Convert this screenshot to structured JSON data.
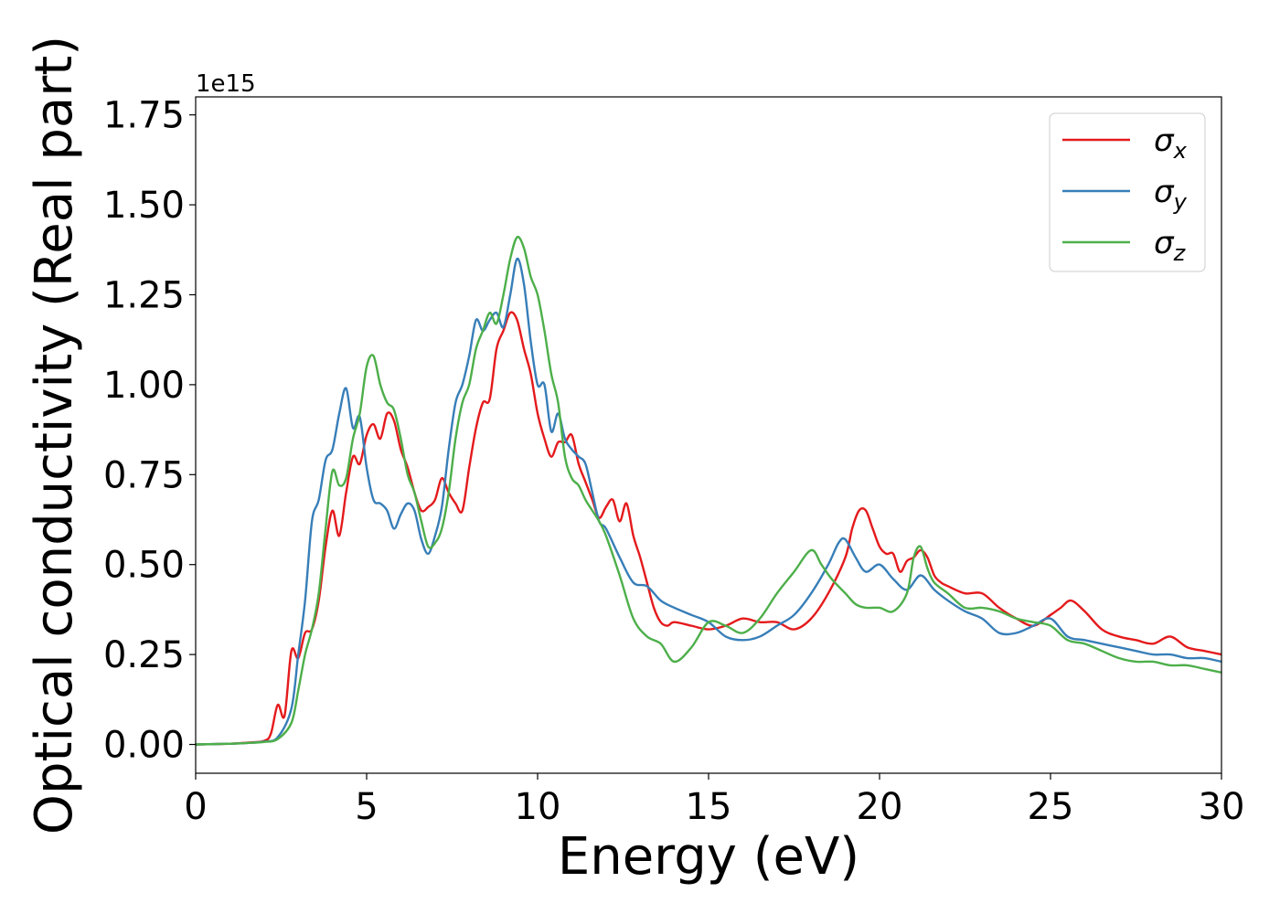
{
  "chart_data": {
    "type": "line",
    "xlabel": "Energy (eV)",
    "ylabel": "Optical conductivity (Real part)",
    "y_offset_label": "1e15",
    "xlim": [
      0,
      30
    ],
    "ylim": [
      -0.08,
      1.8
    ],
    "x_ticks": [
      0,
      5,
      10,
      15,
      20,
      25,
      30
    ],
    "x_tick_labels": [
      "0",
      "5",
      "10",
      "15",
      "20",
      "25",
      "30"
    ],
    "y_ticks": [
      0,
      0.25,
      0.5,
      0.75,
      1.0,
      1.25,
      1.5,
      1.75
    ],
    "y_tick_labels": [
      "0.00",
      "0.25",
      "0.50",
      "0.75",
      "1.00",
      "1.25",
      "1.50",
      "1.75"
    ],
    "grid": false,
    "legend_position": "top-right",
    "series": [
      {
        "name": "σx",
        "base": "σ",
        "sub": "x",
        "color": "#e41a1c",
        "x": [
          0,
          1,
          1.5,
          2,
          2.2,
          2.4,
          2.6,
          2.8,
          3.0,
          3.2,
          3.4,
          3.6,
          3.8,
          4.0,
          4.2,
          4.4,
          4.6,
          4.8,
          5.0,
          5.2,
          5.4,
          5.6,
          5.8,
          6.0,
          6.2,
          6.4,
          6.6,
          6.8,
          7.0,
          7.2,
          7.4,
          7.6,
          7.8,
          8.0,
          8.2,
          8.4,
          8.6,
          8.8,
          9.0,
          9.2,
          9.4,
          9.6,
          9.8,
          10.0,
          10.2,
          10.4,
          10.6,
          10.8,
          11.0,
          11.2,
          11.4,
          11.6,
          11.8,
          12.0,
          12.2,
          12.4,
          12.6,
          12.8,
          13.0,
          13.2,
          13.4,
          13.6,
          13.8,
          14.0,
          14.5,
          15.0,
          15.5,
          16.0,
          16.5,
          17.0,
          17.5,
          18.0,
          18.5,
          19.0,
          19.2,
          19.4,
          19.6,
          19.8,
          20.0,
          20.2,
          20.4,
          20.6,
          20.8,
          21.0,
          21.2,
          21.4,
          21.6,
          21.8,
          22.0,
          22.5,
          23.0,
          23.5,
          24.0,
          24.5,
          25.0,
          25.3,
          25.6,
          26.0,
          26.5,
          27.0,
          27.5,
          28.0,
          28.5,
          29.0,
          29.5,
          30.0
        ],
        "values": [
          0,
          0.002,
          0.005,
          0.01,
          0.03,
          0.11,
          0.08,
          0.26,
          0.24,
          0.31,
          0.32,
          0.4,
          0.55,
          0.65,
          0.58,
          0.7,
          0.8,
          0.78,
          0.86,
          0.89,
          0.85,
          0.92,
          0.9,
          0.82,
          0.77,
          0.7,
          0.65,
          0.66,
          0.68,
          0.74,
          0.7,
          0.67,
          0.65,
          0.77,
          0.88,
          0.95,
          0.96,
          1.1,
          1.15,
          1.2,
          1.18,
          1.1,
          1.03,
          0.92,
          0.85,
          0.8,
          0.84,
          0.84,
          0.86,
          0.78,
          0.73,
          0.68,
          0.63,
          0.66,
          0.68,
          0.62,
          0.67,
          0.58,
          0.52,
          0.45,
          0.38,
          0.34,
          0.33,
          0.34,
          0.33,
          0.32,
          0.33,
          0.35,
          0.34,
          0.34,
          0.32,
          0.35,
          0.42,
          0.52,
          0.6,
          0.65,
          0.65,
          0.6,
          0.55,
          0.53,
          0.53,
          0.48,
          0.51,
          0.52,
          0.54,
          0.52,
          0.47,
          0.45,
          0.44,
          0.42,
          0.42,
          0.38,
          0.35,
          0.33,
          0.36,
          0.38,
          0.4,
          0.37,
          0.32,
          0.3,
          0.29,
          0.28,
          0.3,
          0.27,
          0.26,
          0.25
        ]
      },
      {
        "name": "σy",
        "base": "σ",
        "sub": "y",
        "color": "#377eb8",
        "x": [
          0,
          1,
          1.5,
          2,
          2.4,
          2.8,
          3.0,
          3.2,
          3.4,
          3.6,
          3.8,
          4.0,
          4.2,
          4.4,
          4.6,
          4.8,
          5.0,
          5.2,
          5.4,
          5.6,
          5.8,
          6.0,
          6.2,
          6.4,
          6.6,
          6.8,
          7.0,
          7.2,
          7.4,
          7.6,
          7.8,
          8.0,
          8.2,
          8.4,
          8.6,
          8.8,
          9.0,
          9.2,
          9.4,
          9.6,
          9.8,
          10.0,
          10.2,
          10.4,
          10.6,
          10.8,
          11.0,
          11.2,
          11.4,
          11.6,
          11.8,
          12.0,
          12.4,
          12.8,
          13.2,
          13.6,
          14.0,
          14.5,
          15.0,
          15.5,
          16.0,
          16.5,
          17.0,
          17.5,
          18.0,
          18.5,
          18.8,
          19.0,
          19.3,
          19.6,
          20.0,
          20.4,
          20.8,
          21.2,
          21.6,
          22.0,
          22.5,
          23.0,
          23.5,
          24.0,
          24.5,
          25.0,
          25.5,
          26.0,
          26.5,
          27.0,
          27.5,
          28.0,
          28.5,
          29.0,
          29.5,
          30.0
        ],
        "values": [
          0,
          0.002,
          0.004,
          0.008,
          0.02,
          0.1,
          0.25,
          0.4,
          0.62,
          0.68,
          0.79,
          0.82,
          0.92,
          0.99,
          0.88,
          0.91,
          0.77,
          0.68,
          0.67,
          0.65,
          0.6,
          0.64,
          0.67,
          0.65,
          0.57,
          0.53,
          0.58,
          0.66,
          0.82,
          0.95,
          1.0,
          1.08,
          1.18,
          1.15,
          1.18,
          1.2,
          1.16,
          1.25,
          1.35,
          1.28,
          1.12,
          1.0,
          1.0,
          0.87,
          0.92,
          0.85,
          0.82,
          0.8,
          0.78,
          0.7,
          0.62,
          0.6,
          0.52,
          0.45,
          0.44,
          0.4,
          0.38,
          0.36,
          0.34,
          0.3,
          0.29,
          0.3,
          0.33,
          0.36,
          0.42,
          0.5,
          0.56,
          0.57,
          0.52,
          0.48,
          0.5,
          0.46,
          0.43,
          0.47,
          0.43,
          0.4,
          0.37,
          0.35,
          0.31,
          0.31,
          0.33,
          0.35,
          0.3,
          0.29,
          0.28,
          0.27,
          0.26,
          0.25,
          0.25,
          0.24,
          0.24,
          0.23
        ]
      },
      {
        "name": "σz",
        "base": "σ",
        "sub": "z",
        "color": "#4daf4a",
        "x": [
          0,
          1,
          1.5,
          2,
          2.4,
          2.8,
          3.0,
          3.2,
          3.4,
          3.6,
          3.8,
          4.0,
          4.2,
          4.4,
          4.6,
          4.8,
          5.0,
          5.2,
          5.4,
          5.6,
          5.8,
          6.0,
          6.2,
          6.4,
          6.6,
          6.8,
          7.0,
          7.2,
          7.4,
          7.6,
          7.8,
          8.0,
          8.2,
          8.4,
          8.6,
          8.8,
          9.0,
          9.2,
          9.4,
          9.6,
          9.8,
          10.0,
          10.2,
          10.4,
          10.6,
          10.8,
          11.0,
          11.2,
          11.4,
          11.6,
          11.8,
          12.0,
          12.4,
          12.8,
          13.2,
          13.6,
          14.0,
          14.5,
          15.0,
          15.5,
          16.0,
          16.5,
          17.0,
          17.5,
          18.0,
          18.3,
          18.6,
          19.0,
          19.3,
          19.6,
          20.0,
          20.4,
          20.8,
          21.0,
          21.2,
          21.4,
          21.6,
          22.0,
          22.5,
          23.0,
          23.5,
          24.0,
          24.5,
          25.0,
          25.5,
          26.0,
          26.5,
          27.0,
          27.5,
          28.0,
          28.5,
          29.0,
          29.5,
          30.0
        ],
        "values": [
          0,
          0.002,
          0.004,
          0.007,
          0.015,
          0.06,
          0.15,
          0.25,
          0.32,
          0.42,
          0.6,
          0.76,
          0.72,
          0.74,
          0.85,
          0.92,
          1.05,
          1.08,
          1.0,
          0.95,
          0.93,
          0.85,
          0.75,
          0.7,
          0.62,
          0.55,
          0.56,
          0.6,
          0.7,
          0.85,
          0.95,
          1.0,
          1.1,
          1.15,
          1.2,
          1.17,
          1.25,
          1.35,
          1.41,
          1.38,
          1.3,
          1.25,
          1.15,
          1.03,
          0.95,
          0.8,
          0.74,
          0.72,
          0.68,
          0.65,
          0.62,
          0.58,
          0.47,
          0.35,
          0.3,
          0.28,
          0.23,
          0.27,
          0.34,
          0.33,
          0.31,
          0.35,
          0.42,
          0.48,
          0.54,
          0.5,
          0.46,
          0.42,
          0.39,
          0.38,
          0.38,
          0.37,
          0.42,
          0.52,
          0.55,
          0.49,
          0.45,
          0.42,
          0.38,
          0.38,
          0.37,
          0.35,
          0.34,
          0.33,
          0.29,
          0.28,
          0.26,
          0.24,
          0.23,
          0.23,
          0.22,
          0.22,
          0.21,
          0.2
        ]
      }
    ]
  }
}
